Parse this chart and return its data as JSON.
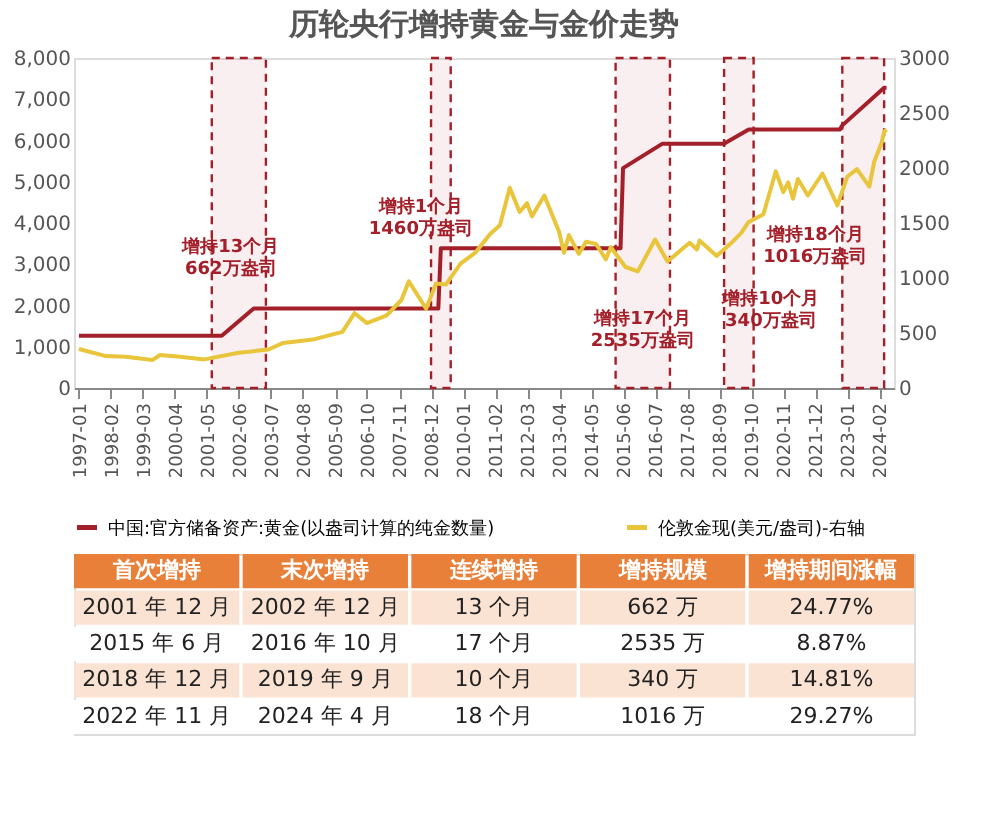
{
  "chart_data": {
    "type": "line",
    "title": "历轮央行增持黄金与金价走势",
    "xlim": [
      "1996-11",
      "2024-08"
    ],
    "xticks": [
      "1997-01",
      "1998-02",
      "1999-03",
      "2000-04",
      "2001-05",
      "2002-06",
      "2003-07",
      "2004-08",
      "2005-09",
      "2006-10",
      "2007-11",
      "2008-12",
      "2010-01",
      "2011-02",
      "2012-03",
      "2013-04",
      "2014-05",
      "2015-06",
      "2016-07",
      "2017-08",
      "2018-09",
      "2019-10",
      "2020-11",
      "2021-12",
      "2023-01",
      "2024-02"
    ],
    "ylim": [
      0,
      8000
    ],
    "yticks": [
      {
        "value": 0,
        "label": "0"
      },
      {
        "value": 1000,
        "label": "1,000"
      },
      {
        "value": 2000,
        "label": "2,000"
      },
      {
        "value": 3000,
        "label": "3,000"
      },
      {
        "value": 4000,
        "label": "4,000"
      },
      {
        "value": 5000,
        "label": "5,000"
      },
      {
        "value": 6000,
        "label": "6,000"
      },
      {
        "value": 7000,
        "label": "7,000"
      },
      {
        "value": 8000,
        "label": "8,000"
      }
    ],
    "y2lim": [
      0,
      3000
    ],
    "y2ticks": [
      0,
      500,
      1000,
      1500,
      2000,
      2500,
      3000
    ],
    "grid": false,
    "legend": "bottom",
    "marker": "none",
    "line_style": "solid",
    "series": [
      {
        "name": "中国:官方储备资产:黄金(以盎司计算的纯金数量)",
        "color": "#a3202a",
        "axis": "y",
        "x": [
          "1997-01",
          "2001-11",
          "2002-12",
          "2009-03",
          "2009-04",
          "2015-05",
          "2015-06",
          "2016-10",
          "2018-11",
          "2018-12",
          "2019-09",
          "2022-10",
          "2022-11",
          "2024-04",
          "2024-05"
        ],
        "values": [
          1267,
          1267,
          1929,
          1929,
          3389,
          3389,
          5331,
          5924,
          5924,
          5956,
          6264,
          6264,
          6367,
          7280,
          7280
        ]
      },
      {
        "name": "伦敦金现(美元/盎司)-右轴",
        "color": "#e8c53a",
        "axis": "y2",
        "x": [
          "1997-01",
          "1997-12",
          "1998-08",
          "1999-07",
          "1999-10",
          "2000-06",
          "2001-04",
          "2002-06",
          "2003-06",
          "2003-12",
          "2004-12",
          "2005-12",
          "2006-05",
          "2006-10",
          "2007-06",
          "2007-12",
          "2008-03",
          "2008-10",
          "2009-02",
          "2009-06",
          "2009-12",
          "2010-06",
          "2010-12",
          "2011-04",
          "2011-08",
          "2011-12",
          "2012-03",
          "2012-05",
          "2012-10",
          "2013-04",
          "2013-06",
          "2013-08",
          "2013-12",
          "2014-03",
          "2014-07",
          "2014-11",
          "2015-01",
          "2015-07",
          "2015-12",
          "2016-07",
          "2016-12",
          "2017-09",
          "2017-12",
          "2018-01",
          "2018-08",
          "2019-02",
          "2019-06",
          "2019-09",
          "2020-03",
          "2020-08",
          "2020-11",
          "2021-01",
          "2021-03",
          "2021-05",
          "2021-09",
          "2022-03",
          "2022-09",
          "2023-01",
          "2023-05",
          "2023-10",
          "2023-12",
          "2024-03",
          "2024-04",
          "2024-05"
        ],
        "values": [
          355,
          290,
          285,
          255,
          300,
          285,
          260,
          320,
          350,
          410,
          440,
          510,
          680,
          590,
          660,
          800,
          970,
          720,
          950,
          940,
          1130,
          1230,
          1400,
          1480,
          1820,
          1600,
          1680,
          1560,
          1750,
          1420,
          1230,
          1390,
          1220,
          1330,
          1310,
          1170,
          1280,
          1100,
          1060,
          1350,
          1150,
          1320,
          1260,
          1340,
          1200,
          1320,
          1410,
          1510,
          1580,
          1970,
          1780,
          1870,
          1720,
          1900,
          1750,
          1950,
          1660,
          1920,
          1990,
          1830,
          2060,
          2230,
          2330,
          2350
        ]
      }
    ],
    "bands": [
      {
        "axis": "x",
        "from": "2001-07",
        "to": "2003-05",
        "color": "#a3202a",
        "label": "增持13个月\n662万盎司"
      },
      {
        "axis": "x",
        "from": "2008-12",
        "to": "2009-08",
        "color": "#a3202a",
        "label": "增持1个月\n1460万盎司"
      },
      {
        "axis": "x",
        "from": "2015-03",
        "to": "2017-01",
        "color": "#a3202a",
        "label": "增持17个月\n2535万盎司"
      },
      {
        "axis": "x",
        "from": "2018-11",
        "to": "2019-11",
        "color": "#a3202a",
        "label": "增持10个月\n340万盎司"
      },
      {
        "axis": "x",
        "from": "2022-11",
        "to": "2024-04",
        "color": "#a3202a",
        "label": "增持18个月\n1016万盎司"
      }
    ],
    "annotations": [
      "首次增持",
      "末次增持",
      "连续增持",
      "增持规模",
      "增持期间涨幅",
      "2001 年 12 月",
      "2002 年 12 月",
      "13 个月",
      "662 万",
      "24.77%",
      "2015 年 6 月",
      "2016 年 10 月",
      "17 个月",
      "2535 万",
      "8.87%",
      "2018 年 12 月",
      "2019 年 9 月",
      "10 个月",
      "340 万",
      "14.81%",
      "2022 年 11 月",
      "2024 年 4 月",
      "18 个月",
      "1016 万",
      "29.27%"
    ]
  }
}
